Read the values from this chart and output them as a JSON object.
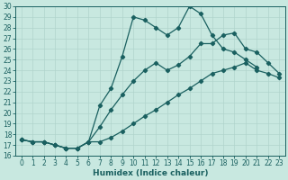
{
  "xlabel": "Humidex (Indice chaleur)",
  "xlim": [
    -0.5,
    23.5
  ],
  "ylim": [
    16,
    30
  ],
  "background_color": "#c8e8e0",
  "grid_color": "#b0d4cc",
  "line_color": "#1a6060",
  "curves": [
    {
      "x": [
        0,
        1,
        2,
        3,
        4,
        5,
        6,
        7,
        8,
        9,
        10,
        11,
        12,
        13,
        14,
        15,
        16,
        17,
        18,
        19,
        20,
        21,
        22,
        23
      ],
      "y": [
        17.5,
        17.3,
        17.3,
        17.0,
        16.7,
        16.7,
        17.3,
        17.3,
        17.7,
        18.3,
        19.0,
        19.7,
        20.3,
        21.0,
        21.7,
        22.3,
        23.0,
        23.7,
        24.0,
        24.3,
        24.7,
        24.0,
        23.7,
        23.3
      ]
    },
    {
      "x": [
        0,
        1,
        2,
        3,
        4,
        5,
        6,
        7,
        8,
        9,
        10,
        11,
        12,
        13,
        14,
        15,
        16,
        17,
        18,
        19,
        20,
        21,
        22,
        23
      ],
      "y": [
        17.5,
        17.3,
        17.3,
        17.0,
        16.7,
        16.7,
        17.3,
        18.7,
        20.3,
        21.7,
        23.0,
        24.0,
        24.7,
        24.0,
        24.5,
        25.3,
        26.5,
        26.5,
        27.3,
        27.5,
        26.0,
        25.7,
        24.7,
        23.7
      ]
    },
    {
      "x": [
        0,
        1,
        2,
        3,
        4,
        5,
        6,
        7,
        8,
        9,
        10,
        11,
        12,
        13,
        14,
        15,
        16,
        17,
        18,
        19,
        20,
        21
      ],
      "y": [
        17.5,
        17.3,
        17.3,
        17.0,
        16.7,
        16.7,
        17.3,
        20.7,
        22.3,
        25.3,
        29.0,
        28.7,
        28.0,
        27.3,
        28.0,
        30.0,
        29.3,
        27.3,
        26.0,
        25.7,
        25.0,
        24.3
      ]
    }
  ],
  "xticks": [
    0,
    1,
    2,
    3,
    4,
    5,
    6,
    7,
    8,
    9,
    10,
    11,
    12,
    13,
    14,
    15,
    16,
    17,
    18,
    19,
    20,
    21,
    22,
    23
  ],
  "yticks": [
    16,
    17,
    18,
    19,
    20,
    21,
    22,
    23,
    24,
    25,
    26,
    27,
    28,
    29,
    30
  ],
  "tick_fontsize": 5.5,
  "label_fontsize": 6.5
}
